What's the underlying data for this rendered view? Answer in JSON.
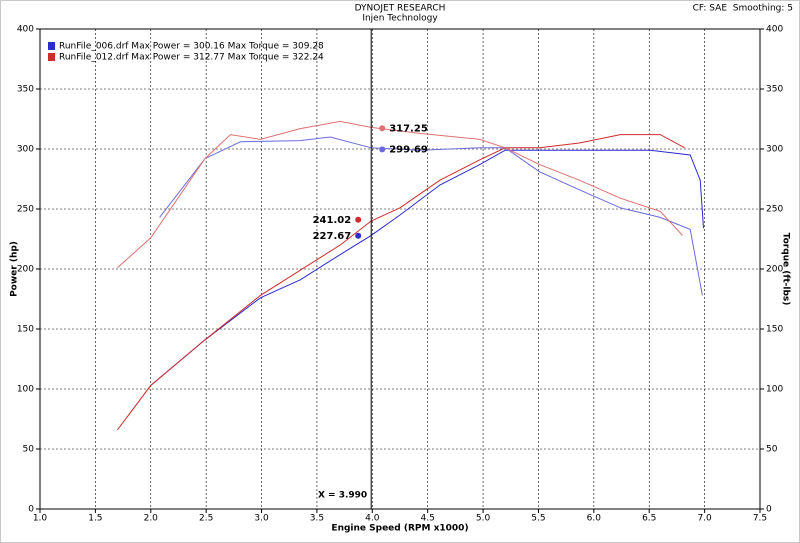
{
  "chart_data": {
    "type": "line",
    "title": "DYNOJET RESEARCH",
    "subtitle": "Injen Technology",
    "corner_text": "CF: SAE  Smoothing: 5",
    "x_label": "Engine Speed (RPM x1000)",
    "y_label": "Power (hp)",
    "y2_label": "Torque (ft-lbs)",
    "xlim": [
      1.0,
      7.5
    ],
    "xticks": [
      {
        "value": 1.0,
        "label": "1.0"
      },
      {
        "value": 1.5,
        "label": "1.5"
      },
      {
        "value": 2.0,
        "label": "2.0"
      },
      {
        "value": 2.5,
        "label": "2.5"
      },
      {
        "value": 3.0,
        "label": "3.0"
      },
      {
        "value": 3.5,
        "label": "3.5"
      },
      {
        "value": 4.0,
        "label": "4.0"
      },
      {
        "value": 4.5,
        "label": "4.5"
      },
      {
        "value": 5.0,
        "label": "5.0"
      },
      {
        "value": 5.5,
        "label": "5.5"
      },
      {
        "value": 6.0,
        "label": "6.0"
      },
      {
        "value": 6.5,
        "label": "6.5"
      },
      {
        "value": 7.0,
        "label": "7.0"
      },
      {
        "value": 7.5,
        "label": "7.5"
      }
    ],
    "ylim": [
      0,
      400
    ],
    "yticks": [
      0,
      50,
      100,
      150,
      200,
      250,
      300,
      350,
      400
    ],
    "y2lim": [
      0,
      400
    ],
    "y2ticks": [
      0,
      50,
      100,
      150,
      200,
      250,
      300,
      350,
      400
    ],
    "grid": true,
    "legend": [
      {
        "text": "RunFile_006.drf Max Power = 300.16 Max Torque = 309.28",
        "color": "#2b2bd0"
      },
      {
        "text": "RunFile_012.drf Max Power = 312.77 Max Torque = 322.24",
        "color": "#d02b2b"
      }
    ],
    "cursor": {
      "value": 3.99,
      "label": "X = 3.990"
    },
    "series": [
      {
        "color": "#2b2bd0",
        "cursor_value": 227.67,
        "x": [
          2.0,
          2.49,
          2.99,
          3.35,
          3.71,
          3.99,
          4.25,
          4.61,
          4.97,
          5.2,
          5.51,
          6.06,
          6.51,
          6.87,
          6.96,
          6.99
        ],
        "values": [
          103,
          141,
          176,
          191,
          212,
          228,
          245,
          270,
          287,
          299,
          299,
          299,
          299,
          295,
          274,
          234
        ]
      },
      {
        "color": "#d02b2b",
        "cursor_value": 241.02,
        "x": [
          1.7,
          2.0,
          2.49,
          2.99,
          3.35,
          3.71,
          3.99,
          4.25,
          4.61,
          4.97,
          5.2,
          5.51,
          5.87,
          6.24,
          6.6,
          6.82
        ],
        "values": [
          66,
          103,
          141,
          178,
          199,
          220,
          240,
          251,
          274,
          291,
          301,
          301,
          305,
          312,
          312,
          301
        ]
      },
      {
        "color": "#6a6ae0",
        "axis": "y2",
        "cursor_value": 299.69,
        "x": [
          2.08,
          2.49,
          2.81,
          3.35,
          3.62,
          3.99,
          4.43,
          4.97,
          5.2,
          5.51,
          5.87,
          6.24,
          6.6,
          6.87,
          6.98
        ],
        "values": [
          243,
          292,
          306,
          307,
          310,
          301,
          299,
          301,
          301,
          281,
          266,
          251,
          243,
          233,
          178
        ]
      },
      {
        "color": "#e07070",
        "axis": "y2",
        "cursor_value": 317.25,
        "x": [
          1.7,
          2.0,
          2.49,
          2.72,
          2.99,
          3.35,
          3.71,
          3.99,
          4.43,
          4.97,
          5.2,
          5.51,
          5.87,
          6.24,
          6.6,
          6.8
        ],
        "values": [
          201,
          226,
          292,
          312,
          308,
          317,
          323,
          318,
          313,
          308,
          301,
          287,
          274,
          259,
          248,
          228
        ]
      }
    ]
  }
}
